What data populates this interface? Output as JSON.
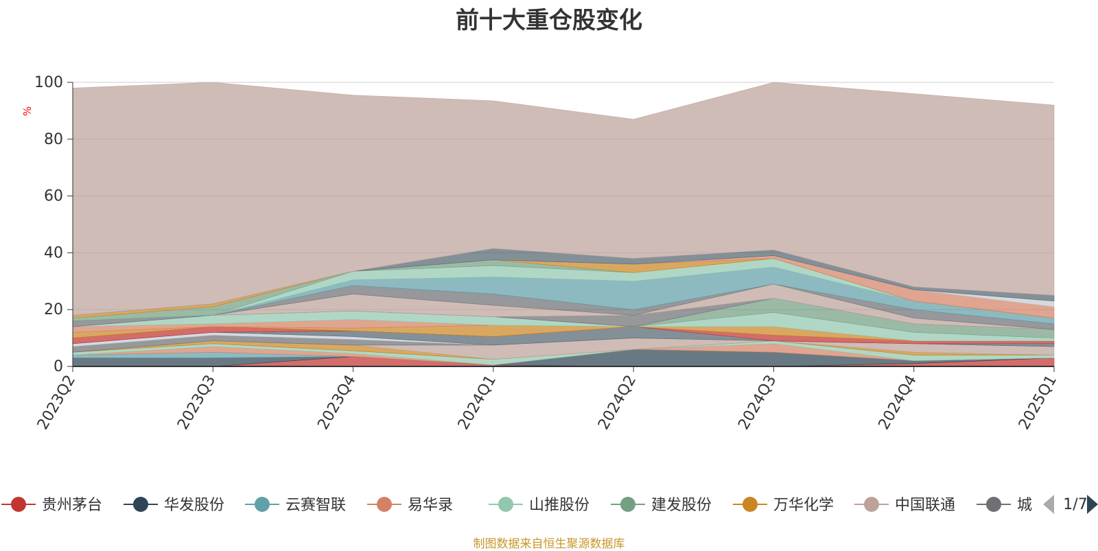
{
  "chart_data": {
    "type": "area",
    "title": "前十大重仓股变化",
    "ylabel": "%",
    "yticks": [
      "0",
      "20",
      "40",
      "60",
      "80",
      "100"
    ],
    "ylim": [
      0,
      100
    ],
    "categories": [
      "2023Q2",
      "2023Q3",
      "2023Q4",
      "2024Q1",
      "2024Q2",
      "2024Q3",
      "2024Q4",
      "2025Q1"
    ],
    "grid": true,
    "series": [
      {
        "name": "贵州茅台",
        "color": "#c23531",
        "values": [
          0,
          0,
          3.5,
          0.5,
          0,
          0,
          1,
          3
        ]
      },
      {
        "name": "华发股份",
        "color": "#2f4554",
        "values": [
          3,
          3,
          0,
          0,
          6,
          5,
          1,
          0
        ]
      },
      {
        "name": "云赛智联",
        "color": "#61a0a8",
        "values": [
          1,
          2,
          0,
          0,
          0,
          0,
          0,
          0
        ]
      },
      {
        "name": "易华录",
        "color": "#d48265",
        "values": [
          0,
          2,
          1,
          0,
          0,
          3,
          0,
          0
        ]
      },
      {
        "name": "山推股份",
        "color": "#91c7ae",
        "values": [
          1,
          1,
          1,
          2,
          0,
          1,
          2,
          1
        ]
      },
      {
        "name": "建发股份",
        "color": "#749f83",
        "values": [
          0,
          0,
          0,
          0,
          0,
          0,
          0,
          0
        ]
      },
      {
        "name": "万华化学",
        "color": "#ca8622",
        "values": [
          0,
          1,
          2,
          0,
          0,
          0,
          1,
          0
        ]
      },
      {
        "name": "中国联通",
        "color": "#bda29a",
        "values": [
          0,
          0,
          0,
          5,
          4,
          0,
          3,
          3
        ]
      },
      {
        "name": "城",
        "color": "#6e7074",
        "values": [
          2,
          2,
          2,
          0,
          0,
          0,
          0,
          0
        ]
      },
      {
        "name": "",
        "color": "#c4ccd3",
        "values": [
          1,
          1,
          1,
          0,
          0,
          0,
          0,
          0
        ]
      },
      {
        "name": "",
        "color": "#546570",
        "values": [
          0,
          0,
          2,
          3,
          4,
          0,
          0,
          1
        ]
      },
      {
        "name": "",
        "color": "#c23531",
        "values": [
          2,
          2,
          0,
          0,
          0,
          2,
          1,
          1
        ]
      },
      {
        "name": "",
        "color": "#ca8622",
        "values": [
          2,
          0,
          1,
          4,
          0,
          3,
          0,
          0
        ]
      },
      {
        "name": "",
        "color": "#d48265",
        "values": [
          2,
          1,
          3,
          0,
          0,
          0,
          0,
          0
        ]
      },
      {
        "name": "",
        "color": "#91c7ae",
        "values": [
          0,
          3,
          3,
          3,
          0,
          5,
          3,
          1
        ]
      },
      {
        "name": "",
        "color": "#749f83",
        "values": [
          0,
          0,
          0,
          0,
          0,
          5,
          3,
          3
        ]
      },
      {
        "name": "",
        "color": "#6e7074",
        "values": [
          2,
          0,
          0,
          0,
          4,
          0,
          0,
          0
        ]
      },
      {
        "name": "",
        "color": "#bda29a",
        "values": [
          0,
          0,
          6,
          4,
          0,
          5,
          2,
          0
        ]
      },
      {
        "name": "",
        "color": "#6e7074",
        "values": [
          0,
          0,
          3,
          4,
          2,
          0,
          3,
          2
        ]
      },
      {
        "name": "",
        "color": "#61a0a8",
        "values": [
          0,
          0,
          2,
          6,
          10,
          6,
          3,
          2
        ]
      },
      {
        "name": "",
        "color": "#91c7ae",
        "values": [
          0,
          0,
          3,
          4,
          3,
          3,
          0,
          0
        ]
      },
      {
        "name": "",
        "color": "#749f83",
        "values": [
          1,
          3,
          0,
          2,
          0,
          0,
          0,
          0
        ]
      },
      {
        "name": "",
        "color": "#ca8622",
        "values": [
          1,
          1,
          0,
          0,
          3,
          0,
          0,
          0
        ]
      },
      {
        "name": "",
        "color": "#d48265",
        "values": [
          0,
          0,
          0,
          0,
          0,
          1,
          4,
          4
        ]
      },
      {
        "name": "",
        "color": "#c4ccd3",
        "values": [
          0,
          0,
          0,
          0,
          0,
          0,
          0,
          2
        ]
      },
      {
        "name": "",
        "color": "#546570",
        "values": [
          0,
          0,
          0,
          4,
          2,
          2,
          1,
          2
        ]
      },
      {
        "name": "",
        "color": "#bda29a",
        "values": [
          80,
          78,
          62,
          52,
          49,
          59,
          68,
          67
        ]
      }
    ],
    "legend": {
      "position": "bottom",
      "page": "1/7"
    }
  },
  "source_note": "制图数据来自恒生聚源数据库"
}
